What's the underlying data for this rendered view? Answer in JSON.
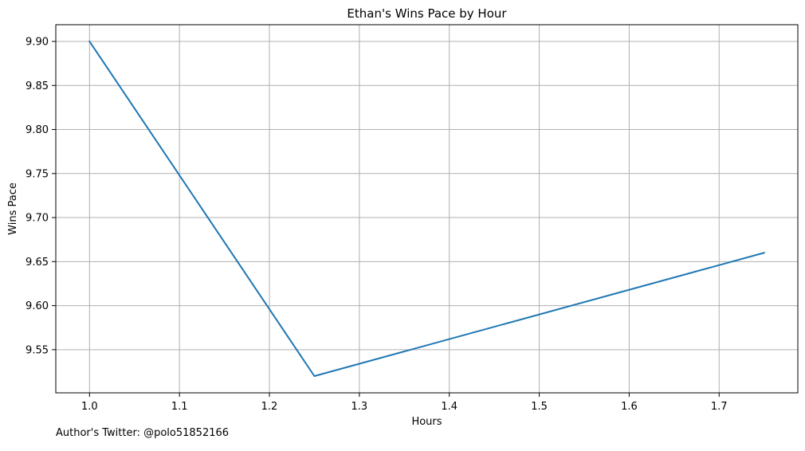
{
  "chart_data": {
    "type": "line",
    "title": "Ethan's Wins Pace by Hour",
    "xlabel": "Hours",
    "ylabel": "Wins Pace",
    "x": [
      1.0,
      1.25,
      1.75
    ],
    "series": [
      {
        "name": "",
        "values": [
          9.9,
          9.52,
          9.66
        ],
        "color": "#1f77b4"
      }
    ],
    "xlim": [
      0.9625,
      1.7875
    ],
    "ylim": [
      9.501,
      9.919
    ],
    "x_ticks": [
      1.0,
      1.1,
      1.2,
      1.3,
      1.4,
      1.5,
      1.6,
      1.7
    ],
    "x_tick_labels": [
      "1.0",
      "1.1",
      "1.2",
      "1.3",
      "1.4",
      "1.5",
      "1.6",
      "1.7"
    ],
    "y_ticks": [
      9.55,
      9.6,
      9.65,
      9.7,
      9.75,
      9.8,
      9.85,
      9.9
    ],
    "y_tick_labels": [
      "9.55",
      "9.60",
      "9.65",
      "9.70",
      "9.75",
      "9.80",
      "9.85",
      "9.90"
    ],
    "grid": true,
    "legend": "none"
  },
  "footer": {
    "text": "Author's Twitter: @polo51852166"
  }
}
